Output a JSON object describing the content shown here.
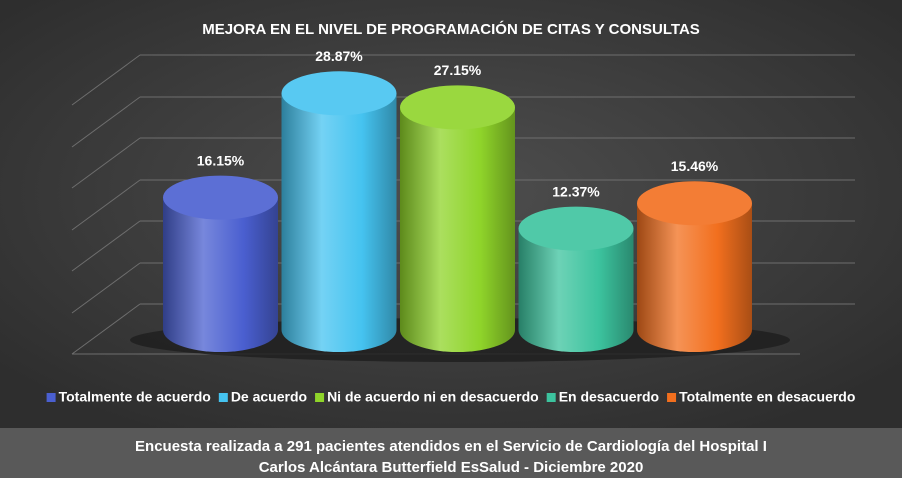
{
  "chart_data": {
    "type": "bar",
    "title": "MEJORA EN EL NIVEL DE PROGRAMACIÓN DE CITAS Y CONSULTAS",
    "categories": [
      "Totalmente de acuerdo",
      "De acuerdo",
      "Ni de acuerdo ni en desacuerdo",
      "En desacuerdo",
      "Totalmente en desacuerdo"
    ],
    "values": [
      16.15,
      28.87,
      27.15,
      12.37,
      15.46
    ],
    "value_labels": [
      "16.15%",
      "28.87%",
      "27.15%",
      "12.37%",
      "15.46%"
    ],
    "colors": [
      "#4a5fd0",
      "#45c3f0",
      "#8fd42a",
      "#3cc39e",
      "#f26f1e"
    ],
    "ylim": [
      0,
      35
    ],
    "grid": true,
    "legend": "bottom",
    "caption": [
      "Encuesta realizada a 291 pacientes atendidos en el Servicio de Cardiología del Hospital I",
      "Carlos Alcántara Butterfield EsSalud - Diciembre 2020"
    ]
  }
}
